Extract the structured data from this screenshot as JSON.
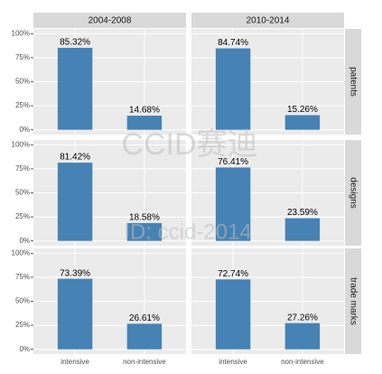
{
  "chart_data": {
    "type": "bar",
    "facet_cols": [
      "2004-2008",
      "2010-2014"
    ],
    "facet_rows": [
      "patents",
      "designs",
      "trade marks"
    ],
    "categories": [
      "intensive",
      "non-intensive"
    ],
    "color": "#4682b4",
    "ylim": [
      -5,
      105
    ],
    "yticks": [
      {
        "value": 0,
        "label": "0%"
      },
      {
        "value": 25,
        "label": "25%"
      },
      {
        "value": 50,
        "label": "50%"
      },
      {
        "value": 75,
        "label": "75%"
      },
      {
        "value": 100,
        "label": "100%"
      }
    ],
    "grid": true,
    "panels": [
      [
        {
          "values": [
            85.32,
            14.68
          ],
          "value_labels": [
            "85.32%",
            "14.68%"
          ]
        },
        {
          "values": [
            84.74,
            15.26
          ],
          "value_labels": [
            "84.74%",
            "15.26%"
          ]
        }
      ],
      [
        {
          "values": [
            81.42,
            18.58
          ],
          "value_labels": [
            "81.42%",
            "18.58%"
          ]
        },
        {
          "values": [
            76.41,
            23.59
          ],
          "value_labels": [
            "76.41%",
            "23.59%"
          ]
        }
      ],
      [
        {
          "values": [
            73.39,
            26.61
          ],
          "value_labels": [
            "73.39%",
            "26.61%"
          ]
        },
        {
          "values": [
            72.74,
            27.26
          ],
          "value_labels": [
            "72.74%",
            "27.26%"
          ]
        }
      ]
    ],
    "watermark": [
      "CCID赛迪",
      "ID: ccid-2014"
    ]
  }
}
